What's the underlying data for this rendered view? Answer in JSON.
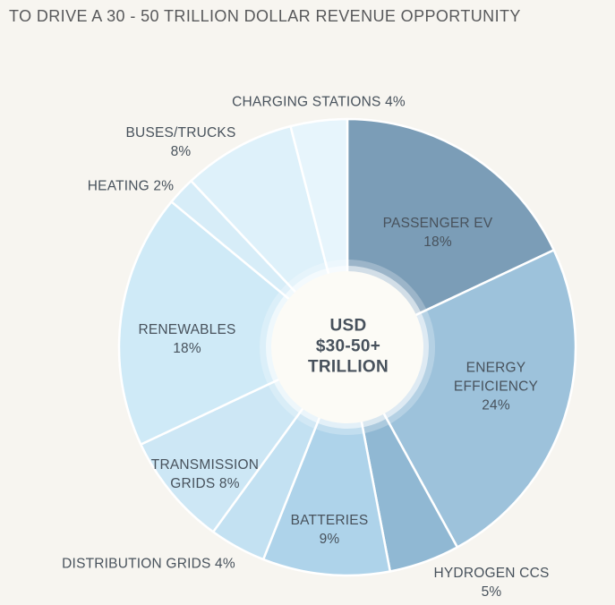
{
  "title": "TO DRIVE A 30 - 50 TRILLION DOLLAR REVENUE OPPORTUNITY",
  "center_label": "USD\n$30-50+\nTRILLION",
  "colors": {
    "background": "#f7f5f0",
    "title_text": "#58595b",
    "label_text": "#48525c",
    "slice_divider": "#ffffff",
    "donut_hole": "#fcfbf6"
  },
  "chart_data": {
    "type": "pie",
    "subtype": "donut",
    "title": "TO DRIVE A 30 - 50 TRILLION DOLLAR REVENUE OPPORTUNITY",
    "center_total": "USD $30-50+ TRILLION",
    "units": "percent",
    "start_angle_deg": 0,
    "direction": "clockwise",
    "legend_position": "labels-on-and-around-slices",
    "segments": [
      {
        "id": "passenger-ev",
        "name": "PASSENGER EV",
        "value": 18,
        "color": "#7b9db7",
        "label": "PASSENGER EV\n18%"
      },
      {
        "id": "energy-efficiency",
        "name": "ENERGY EFFICIENCY",
        "value": 24,
        "color": "#9dc2db",
        "label": "ENERGY\nEFFICIENCY\n24%"
      },
      {
        "id": "hydrogen-ccs",
        "name": "HYDROGEN CCS",
        "value": 5,
        "color": "#90b8d3",
        "label": "HYDROGEN CCS 5%"
      },
      {
        "id": "batteries",
        "name": "BATTERIES",
        "value": 9,
        "color": "#aed3ea",
        "label": "BATTERIES\n9%"
      },
      {
        "id": "distribution-grids",
        "name": "DISTRIBUTION GRIDS",
        "value": 4,
        "color": "#c3e1f2",
        "label": "DISTRIBUTION GRIDS 4%"
      },
      {
        "id": "transmission-grids",
        "name": "TRANSMISSION GRIDS",
        "value": 8,
        "color": "#cde7f5",
        "label": "TRANSMISSION\nGRIDS 8%"
      },
      {
        "id": "renewables",
        "name": "RENEWABLES",
        "value": 18,
        "color": "#cfeaf7",
        "label": "RENEWABLES\n18%"
      },
      {
        "id": "heating",
        "name": "HEATING",
        "value": 2,
        "color": "#d7edf8",
        "label": "HEATING 2%"
      },
      {
        "id": "buses-trucks",
        "name": "BUSES/TRUCKS",
        "value": 8,
        "color": "#def1fa",
        "label": "BUSES/TRUCKS\n8%"
      },
      {
        "id": "charging-stations",
        "name": "CHARGING STATIONS",
        "value": 4,
        "color": "#e7f5fc",
        "label": "CHARGING STATIONS 4%"
      }
    ]
  }
}
